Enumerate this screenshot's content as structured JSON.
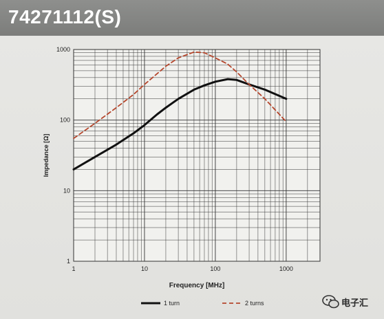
{
  "header": {
    "title": "74271112(S)"
  },
  "chart_data": {
    "type": "line",
    "title": "",
    "xlabel": "Frequency [MHz]",
    "ylabel": "Impedance [Ω]",
    "xscale": "log",
    "yscale": "log",
    "xlim": [
      1,
      3000
    ],
    "ylim": [
      1,
      1000
    ],
    "x_ticks": [
      "1",
      "10",
      "100",
      "1000"
    ],
    "y_ticks": [
      "1",
      "10",
      "100",
      "1000"
    ],
    "grid": true,
    "legend_position": "bottom",
    "series": [
      {
        "name": "1 turn",
        "style": "solid",
        "color": "#111111",
        "x": [
          1,
          2,
          4,
          7,
          10,
          15,
          20,
          30,
          50,
          70,
          100,
          150,
          200,
          300,
          500,
          1000
        ],
        "y": [
          20,
          30,
          45,
          65,
          85,
          120,
          150,
          200,
          270,
          310,
          350,
          380,
          370,
          320,
          270,
          200
        ]
      },
      {
        "name": "2 turns",
        "style": "dashed",
        "color": "#b5462c",
        "x": [
          1,
          2,
          4,
          7,
          10,
          20,
          30,
          50,
          70,
          100,
          150,
          200,
          300,
          500,
          1000
        ],
        "y": [
          55,
          90,
          150,
          230,
          320,
          580,
          760,
          920,
          900,
          760,
          620,
          480,
          320,
          200,
          95
        ]
      }
    ]
  },
  "watermark": {
    "text": "电子汇"
  }
}
